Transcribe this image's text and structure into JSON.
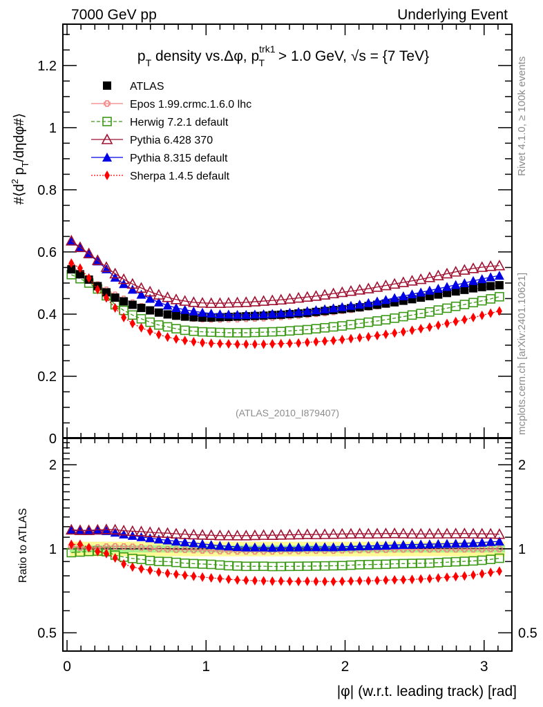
{
  "header": {
    "left": "7000 GeV pp",
    "right": "Underlying Event"
  },
  "side_labels": {
    "rivet": "Rivet 4.1.0, ≥ 100k events",
    "mcplots": "mcplots.cern.ch [arXiv:2401.10621]"
  },
  "analysis_tag": "(ATLAS_2010_I879407)",
  "chart_data": [
    {
      "type": "scatter",
      "panel": "main",
      "title": "p_T density vs.Δφ, p_T^trk1 > 1.0 GeV, √s = {7 TeV}",
      "title_parts": {
        "p": "p",
        "T": "T",
        "mid": " density vs.Δφ, ",
        "p2": "p",
        "sup": "trk1",
        "sub2": "T",
        "tail": " > 1.0 GeV, ",
        "sqrt": "√s",
        "end": " = {7 TeV}"
      },
      "ylabel": "#⟨d² p_T/dηdφ#⟩",
      "ylabel_parts": {
        "a": "#⟨d",
        "sup": "2",
        "b": " p",
        "sub": "T",
        "c": "/dηdφ#⟩"
      },
      "xlabel": "|φ| (w.r.t. leading track) [rad]",
      "xlim": [
        -0.03,
        3.2
      ],
      "ylim": [
        0,
        1.333
      ],
      "yticks": [
        0,
        0.2,
        0.4,
        0.6,
        0.8,
        1,
        1.2
      ],
      "ytick_labels": [
        "0",
        "0.2",
        "0.4",
        "0.6",
        "0.8",
        "1",
        "1.2"
      ],
      "xticks": [
        0,
        1,
        2,
        3
      ],
      "xtick_labels": [
        "0",
        "1",
        "2",
        "3"
      ],
      "legend_position": "top-left",
      "x": [
        0.031,
        0.094,
        0.157,
        0.22,
        0.283,
        0.346,
        0.408,
        0.471,
        0.534,
        0.597,
        0.66,
        0.723,
        0.785,
        0.848,
        0.911,
        0.974,
        1.037,
        1.1,
        1.162,
        1.225,
        1.288,
        1.351,
        1.414,
        1.477,
        1.539,
        1.602,
        1.665,
        1.728,
        1.791,
        1.854,
        1.916,
        1.979,
        2.042,
        2.105,
        2.168,
        2.231,
        2.293,
        2.356,
        2.419,
        2.482,
        2.545,
        2.608,
        2.67,
        2.733,
        2.796,
        2.859,
        2.922,
        2.985,
        3.047,
        3.11
      ],
      "series": [
        {
          "name": "ATLAS",
          "color": "#000000",
          "marker": "square-filled",
          "line": "none",
          "values": [
            0.544,
            0.528,
            0.511,
            0.49,
            0.47,
            0.453,
            0.441,
            0.43,
            0.42,
            0.412,
            0.405,
            0.399,
            0.395,
            0.392,
            0.39,
            0.389,
            0.389,
            0.39,
            0.391,
            0.392,
            0.393,
            0.394,
            0.395,
            0.397,
            0.398,
            0.4,
            0.402,
            0.404,
            0.407,
            0.41,
            0.413,
            0.416,
            0.419,
            0.422,
            0.426,
            0.43,
            0.434,
            0.438,
            0.443,
            0.448,
            0.453,
            0.458,
            0.463,
            0.468,
            0.473,
            0.478,
            0.483,
            0.487,
            0.49,
            0.493
          ]
        },
        {
          "name": "Epos 1.99.crmc.1.6.0 lhc",
          "color": "#f08080",
          "marker": "cross-open",
          "line": "solid",
          "values": [
            0.556,
            0.533,
            0.514,
            0.495,
            0.478,
            0.462,
            0.449,
            0.437,
            0.425,
            0.414,
            0.404,
            0.397,
            0.392,
            0.389,
            0.386,
            0.384,
            0.383,
            0.383,
            0.384,
            0.384,
            0.385,
            0.386,
            0.387,
            0.389,
            0.391,
            0.393,
            0.395,
            0.398,
            0.401,
            0.404,
            0.407,
            0.411,
            0.414,
            0.418,
            0.422,
            0.426,
            0.431,
            0.436,
            0.441,
            0.446,
            0.451,
            0.456,
            0.461,
            0.466,
            0.471,
            0.476,
            0.481,
            0.485,
            0.489,
            0.492
          ]
        },
        {
          "name": "Herwig 7.2.1 default",
          "color": "#3c9a16",
          "marker": "square-open",
          "line": "dashed",
          "values": [
            0.527,
            0.514,
            0.5,
            0.481,
            0.459,
            0.43,
            0.412,
            0.397,
            0.385,
            0.374,
            0.365,
            0.359,
            0.353,
            0.348,
            0.345,
            0.343,
            0.342,
            0.341,
            0.34,
            0.34,
            0.34,
            0.341,
            0.342,
            0.343,
            0.344,
            0.346,
            0.348,
            0.35,
            0.353,
            0.356,
            0.359,
            0.362,
            0.366,
            0.37,
            0.374,
            0.378,
            0.382,
            0.387,
            0.392,
            0.397,
            0.402,
            0.407,
            0.413,
            0.419,
            0.425,
            0.431,
            0.437,
            0.443,
            0.449,
            0.456
          ]
        },
        {
          "name": "Pythia 6.428 370",
          "color": "#a01030",
          "marker": "triangle-open",
          "line": "solid",
          "values": [
            0.636,
            0.615,
            0.595,
            0.573,
            0.551,
            0.53,
            0.512,
            0.497,
            0.484,
            0.472,
            0.462,
            0.454,
            0.447,
            0.442,
            0.438,
            0.436,
            0.435,
            0.435,
            0.436,
            0.437,
            0.438,
            0.44,
            0.442,
            0.444,
            0.446,
            0.449,
            0.452,
            0.455,
            0.458,
            0.462,
            0.466,
            0.47,
            0.474,
            0.478,
            0.482,
            0.487,
            0.492,
            0.497,
            0.502,
            0.507,
            0.512,
            0.518,
            0.524,
            0.53,
            0.536,
            0.542,
            0.547,
            0.551,
            0.554,
            0.556
          ]
        },
        {
          "name": "Pythia 8.315 default",
          "color": "#0000e6",
          "marker": "triangle-filled",
          "line": "solid",
          "values": [
            0.634,
            0.613,
            0.593,
            0.57,
            0.545,
            0.518,
            0.497,
            0.479,
            0.463,
            0.45,
            0.438,
            0.428,
            0.42,
            0.414,
            0.409,
            0.405,
            0.402,
            0.4,
            0.399,
            0.398,
            0.398,
            0.399,
            0.4,
            0.401,
            0.403,
            0.405,
            0.407,
            0.41,
            0.413,
            0.416,
            0.419,
            0.423,
            0.427,
            0.431,
            0.436,
            0.441,
            0.446,
            0.452,
            0.458,
            0.464,
            0.47,
            0.476,
            0.482,
            0.488,
            0.494,
            0.5,
            0.507,
            0.513,
            0.519,
            0.524
          ]
        },
        {
          "name": "Sherpa 1.4.5 default",
          "color": "#ff0000",
          "marker": "diamond-filled",
          "line": "dotted",
          "values": [
            0.564,
            0.548,
            0.516,
            0.479,
            0.452,
            0.42,
            0.389,
            0.37,
            0.356,
            0.345,
            0.334,
            0.326,
            0.32,
            0.315,
            0.311,
            0.308,
            0.306,
            0.305,
            0.304,
            0.303,
            0.303,
            0.303,
            0.303,
            0.304,
            0.305,
            0.306,
            0.307,
            0.309,
            0.311,
            0.313,
            0.315,
            0.318,
            0.321,
            0.324,
            0.327,
            0.331,
            0.335,
            0.339,
            0.343,
            0.348,
            0.353,
            0.358,
            0.364,
            0.37,
            0.376,
            0.382,
            0.389,
            0.396,
            0.403,
            0.41
          ]
        }
      ]
    },
    {
      "type": "scatter",
      "panel": "ratio",
      "ylabel": "Ratio to ATLAS",
      "yscale": "log",
      "ylim": [
        0.43,
        2.5
      ],
      "yticks": [
        0.5,
        1,
        2
      ],
      "ytick_labels": [
        "0.5",
        "1",
        "2"
      ],
      "xlim": [
        -0.03,
        3.2
      ],
      "reference_band": {
        "inner_fraction": 0.03,
        "outer_fraction": 0.06,
        "inner_color": "#a8f08c",
        "outer_color": "#fffa96"
      },
      "series_ratio_note": "model / ATLAS for each series in main panel"
    }
  ]
}
